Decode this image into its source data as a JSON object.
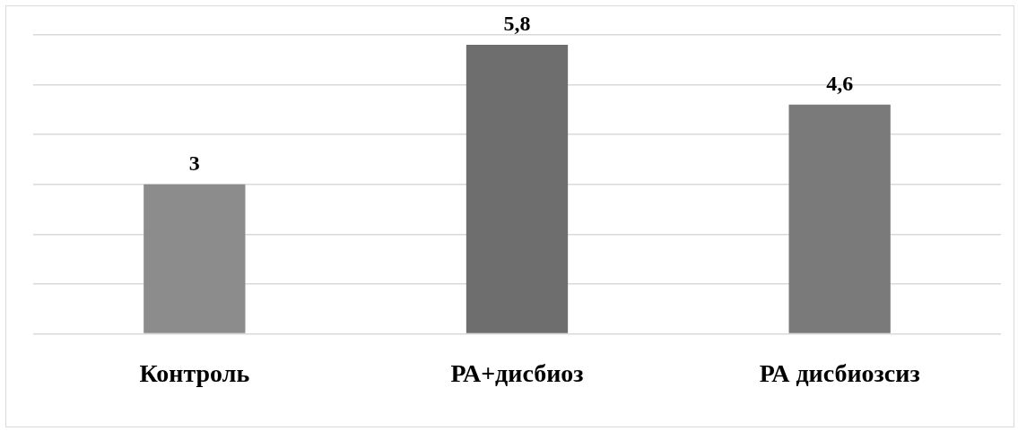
{
  "chart_data": {
    "type": "bar",
    "categories": [
      "Контроль",
      "РА+дисбиоз",
      "РА дисбиозсиз"
    ],
    "values": [
      3,
      5.8,
      4.6
    ],
    "colors": [
      "#8c8c8c",
      "#6e6e6e",
      "#7a7a7a"
    ],
    "value_labels": [
      "3",
      "5,8",
      "4,6"
    ],
    "grid": "y",
    "tick_labels": "x",
    "legend": false
  }
}
